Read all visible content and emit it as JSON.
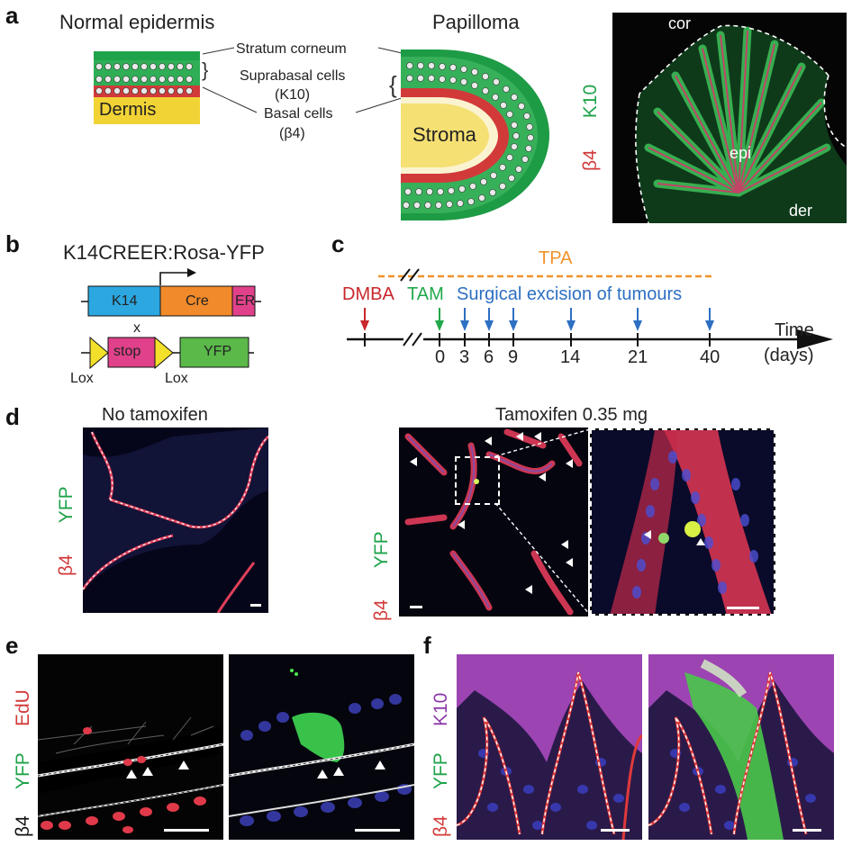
{
  "panels": {
    "a": "a",
    "b": "b",
    "c": "c",
    "d": "d",
    "e": "e",
    "f": "f"
  },
  "a": {
    "normal_title": "Normal epidermis",
    "papilloma_title": "Papilloma",
    "stratum": "Stratum corneum",
    "suprabasal": "Suprabasal cells",
    "suprabasal_marker": "(K10)",
    "basal": "Basal cells",
    "basal_marker": "(β4)",
    "dermis": "Dermis",
    "stroma": "Stroma",
    "img_k10": "K10",
    "img_b4": "β4",
    "cor": "cor",
    "epi": "epi",
    "der": "der",
    "colors": {
      "green": "#1ea34a",
      "red": "#d23a3a",
      "yellow": "#f2d335"
    }
  },
  "b": {
    "title": "K14CREER:Rosa-YFP",
    "k14": "K14",
    "cre": "Cre",
    "er": "ER",
    "x": "x",
    "stop": "stop",
    "yfp": "YFP",
    "lox1": "Lox",
    "lox2": "Lox"
  },
  "c": {
    "tpa": "TPA",
    "dmba": "DMBA",
    "tam": "TAM",
    "surgical": "Surgical excision of tumours",
    "time": "Time",
    "days": "(days)",
    "ticks": [
      "0",
      "3",
      "6",
      "9",
      "14",
      "21",
      "40"
    ],
    "colors": {
      "tpa": "#f0922b",
      "dmba": "#c8272d",
      "tam": "#22a84a",
      "surg": "#2d6fc2"
    }
  },
  "d": {
    "no_tam": "No tamoxifen",
    "tam": "Tamoxifen 0.35 mg",
    "yfp1": "YFP",
    "b41": "β4",
    "yfp2": "YFP",
    "b42": "β4"
  },
  "e": {
    "edu": "EdU",
    "yfp": "YFP",
    "b4": "β4"
  },
  "f": {
    "k10": "K10",
    "yfp": "YFP",
    "b4": "β4"
  }
}
